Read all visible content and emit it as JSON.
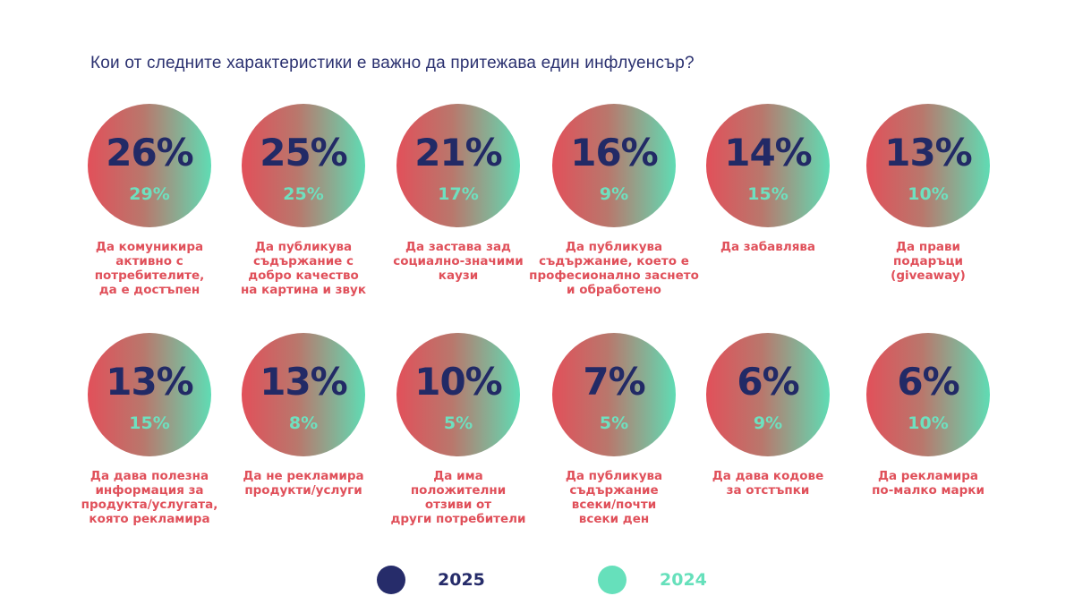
{
  "title": "Кои от следните характеристики е важно да притежава един инфлуенсър?",
  "chart_data": {
    "type": "bubble-comparison",
    "title": "Кои от следните характеристики е важно да притежава един инфлуенсър?",
    "series": [
      {
        "name": "2025",
        "color": "#262c6a"
      },
      {
        "name": "2024",
        "color": "#66e0bb"
      }
    ],
    "items": [
      {
        "label": "Да комуникира активно с потребителите, да е достъпен",
        "v2025": "26%",
        "v2024": "29%"
      },
      {
        "label": "Да публикува съдържание с добро качество на картина и звук",
        "v2025": "25%",
        "v2024": "25%"
      },
      {
        "label": "Да застава зад социално-значими каузи",
        "v2025": "21%",
        "v2024": "17%"
      },
      {
        "label": "Да публикува съдържание, което е професионално заснето и обработено",
        "v2025": "16%",
        "v2024": "9%"
      },
      {
        "label": "Да забавлява",
        "v2025": "14%",
        "v2024": "15%"
      },
      {
        "label": "Да прави подаръци (giveaway)",
        "v2025": "13%",
        "v2024": "10%"
      },
      {
        "label": "Да дава полезна информация за продукта/услугата, която рекламира",
        "v2025": "13%",
        "v2024": "15%"
      },
      {
        "label": "Да не рекламира продукти/услуги",
        "v2025": "13%",
        "v2024": "8%"
      },
      {
        "label": "Да има положителни отзиви от други потребители",
        "v2025": "10%",
        "v2024": "5%"
      },
      {
        "label": "Да публикува съдържание всеки/почти всеки ден",
        "v2025": "7%",
        "v2024": "5%"
      },
      {
        "label": "Да дава кодове за отстъпки",
        "v2025": "6%",
        "v2024": "9%"
      },
      {
        "label": "Да рекламира по-малко марки",
        "v2025": "6%",
        "v2024": "10%"
      }
    ]
  },
  "legend": {
    "label_2025": "2025",
    "label_2024": "2024"
  }
}
